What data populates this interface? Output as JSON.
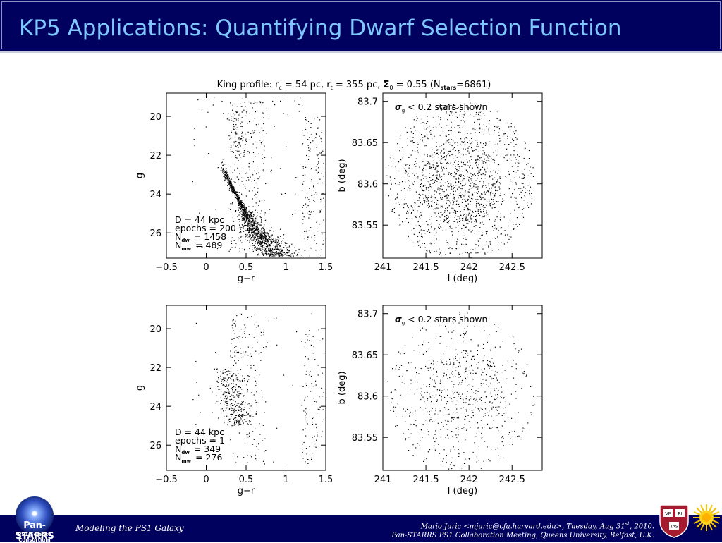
{
  "slide": {
    "title": "KP5 Applications: Quantifying Dwarf Selection Function"
  },
  "figure": {
    "suptitle_prefix": "King profile: r",
    "suptitle_rc_sub": "c",
    "suptitle_mid1": " = 54 pc, r",
    "suptitle_rt_sub": "t",
    "suptitle_mid2": " = 355 pc, ",
    "suptitle_sigma": "Σ",
    "suptitle_sigma_sub": "0",
    "suptitle_mid3": " = 0.55 (N",
    "suptitle_n_sub": "stars",
    "suptitle_end": "=6861)"
  },
  "colors": {
    "title_bar": "#00005e",
    "title_text": "#7ec8ff",
    "footer_bar": "#00005e",
    "points": "#000000"
  },
  "chart_data": [
    {
      "type": "scatter",
      "panel": "cmd-top",
      "xlabel": "g−r",
      "ylabel": "g",
      "xlim": [
        -0.5,
        1.5
      ],
      "ylim": [
        27.3,
        18.8
      ],
      "y_inverted": true,
      "xticks": [
        "−0.5",
        "0",
        "0.5",
        "1",
        "1.5"
      ],
      "yticks": [
        "20",
        "22",
        "24",
        "26"
      ],
      "annotation": {
        "d": "D = 44 kpc",
        "epochs": "epochs = 200",
        "ndw_value": "= 1458",
        "nmw_value": "= 489",
        "n_symbol": "N",
        "dw_sub": "dw",
        "mw_sub": "mw"
      },
      "n_dwarf": 1458,
      "n_mw": 489,
      "seed": 11
    },
    {
      "type": "scatter",
      "panel": "sky-top",
      "xlabel": "l (deg)",
      "ylabel": "b (deg)",
      "xlim": [
        241.0,
        242.85
      ],
      "ylim": [
        83.51,
        83.71
      ],
      "xticks": [
        "241",
        "241.5",
        "242",
        "242.5"
      ],
      "yticks": [
        "83.55",
        "83.6",
        "83.65",
        "83.7"
      ],
      "annotation": {
        "sigma": "σ",
        "sigma_sub": "g",
        "text": " < 0.2 stars shown"
      },
      "center": [
        241.905,
        83.603
      ],
      "radius": [
        0.86,
        0.098
      ],
      "n_points": 1600,
      "seed": 21
    },
    {
      "type": "scatter",
      "panel": "cmd-bottom",
      "xlabel": "g−r",
      "ylabel": "g",
      "xlim": [
        -0.5,
        1.5
      ],
      "ylim": [
        27.3,
        18.8
      ],
      "y_inverted": true,
      "xticks": [
        "−0.5",
        "0",
        "0.5",
        "1",
        "1.5"
      ],
      "yticks": [
        "20",
        "22",
        "24",
        "26"
      ],
      "annotation": {
        "d": "D = 44 kpc",
        "epochs": "epochs = 1",
        "ndw_value": "= 349",
        "nmw_value": "= 276",
        "n_symbol": "N",
        "dw_sub": "dw",
        "mw_sub": "mw"
      },
      "n_dwarf": 349,
      "n_mw": 276,
      "seed": 31
    },
    {
      "type": "scatter",
      "panel": "sky-bottom",
      "xlabel": "l (deg)",
      "ylabel": "b (deg)",
      "xlim": [
        241.0,
        242.85
      ],
      "ylim": [
        83.51,
        83.71
      ],
      "xticks": [
        "241",
        "241.5",
        "242",
        "242.5"
      ],
      "yticks": [
        "83.55",
        "83.6",
        "83.65",
        "83.7"
      ],
      "annotation": {
        "sigma": "σ",
        "sigma_sub": "g",
        "text": " < 0.2 stars shown"
      },
      "center": [
        241.905,
        83.603
      ],
      "radius": [
        0.86,
        0.098
      ],
      "n_points": 720,
      "seed": 41
    }
  ],
  "footer": {
    "left": "Modeling the PS1 Galaxy",
    "author_line": "Mario Juric <mjuric@cfa.harvard.edu>, Tuesday, Aug 31",
    "author_sup": "st",
    "author_end": ", 2010.",
    "meeting_line": "Pan-STARRS PS1 Collaboration Meeting, Queens University, Belfast, U.K.",
    "logo_name": "Pan-STARRS",
    "logo_sub": "PS1 Science Consortium",
    "shield_top_left": "VE",
    "shield_top_right": "RI",
    "shield_bottom": "TAS"
  }
}
